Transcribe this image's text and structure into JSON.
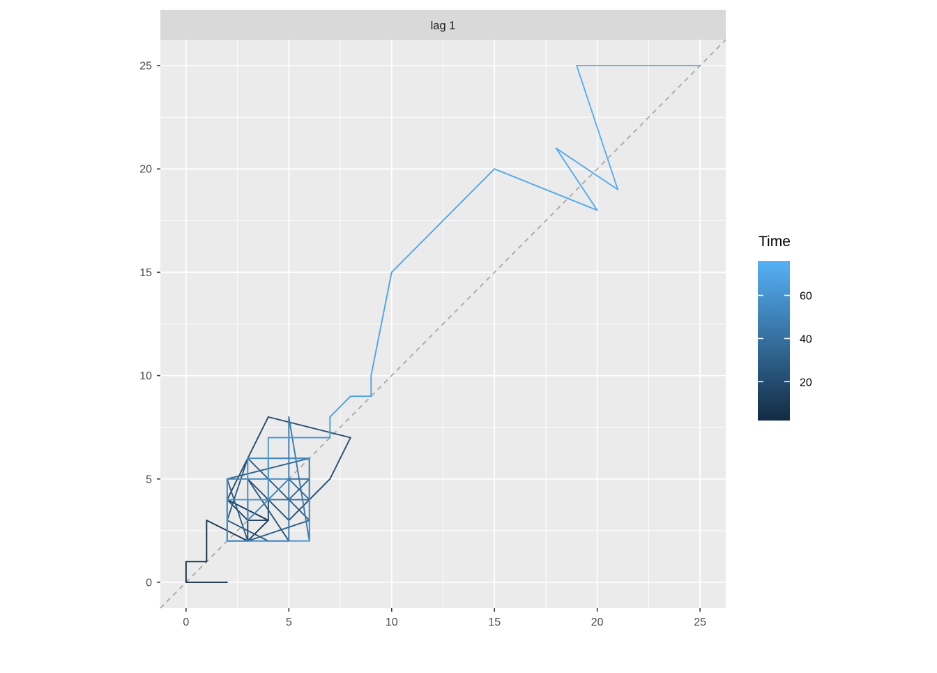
{
  "strip": {
    "label": "lag 1"
  },
  "legend": {
    "title": "Time",
    "tick_labels": [
      "60",
      "40",
      "20"
    ]
  },
  "axes": {
    "x_tick_labels": [
      "0",
      "5",
      "10",
      "15",
      "20",
      "25"
    ],
    "y_tick_labels": [
      "0",
      "5",
      "10",
      "15",
      "20",
      "25"
    ]
  },
  "colors": {
    "panel_background": "#EBEBEB",
    "strip_background": "#D9D9D9",
    "grid": "#FFFFFF",
    "reference_line": "#ABABAB",
    "axis_text": "#4D4D4D",
    "tick_mark": "#333333",
    "gradient_low": "#132B43",
    "gradient_high": "#56B1F7"
  },
  "chart_data": {
    "type": "line",
    "title": "lag 1",
    "facet_label": "lag 1",
    "xlabel": "",
    "ylabel": "",
    "x_domain": [
      -1.25,
      26.25
    ],
    "y_domain": [
      -1.25,
      26.25
    ],
    "major_ticks": [
      0,
      5,
      10,
      15,
      20,
      25
    ],
    "minor_ticks": [
      2.5,
      7.5,
      12.5,
      17.5,
      22.5
    ],
    "grid": true,
    "reference_line": {
      "type": "diagonal-y-equals-x",
      "style": "dashed"
    },
    "color_scale": {
      "title": "Time",
      "low": "#132B43",
      "high": "#56B1F7",
      "domain": [
        2,
        76
      ],
      "legend_ticks": [
        60,
        40,
        20
      ],
      "legend_position": "right"
    },
    "points": [
      {
        "x": 2,
        "y": 0,
        "time": 2.0
      },
      {
        "x": 0,
        "y": 0,
        "time": 3.1
      },
      {
        "x": 0,
        "y": 1,
        "time": 4.3
      },
      {
        "x": 1,
        "y": 1,
        "time": 5.4
      },
      {
        "x": 1,
        "y": 3,
        "time": 6.6
      },
      {
        "x": 3,
        "y": 2,
        "time": 7.7
      },
      {
        "x": 2,
        "y": 2,
        "time": 8.8
      },
      {
        "x": 2,
        "y": 4,
        "time": 10.0
      },
      {
        "x": 4,
        "y": 3,
        "time": 11.1
      },
      {
        "x": 3,
        "y": 2,
        "time": 12.2
      },
      {
        "x": 3,
        "y": 4,
        "time": 13.4
      },
      {
        "x": 4,
        "y": 4,
        "time": 14.5
      },
      {
        "x": 4,
        "y": 3,
        "time": 15.7
      },
      {
        "x": 3,
        "y": 3,
        "time": 16.8
      },
      {
        "x": 2,
        "y": 4,
        "time": 17.9
      },
      {
        "x": 4,
        "y": 8,
        "time": 19.1
      },
      {
        "x": 8,
        "y": 7,
        "time": 20.2
      },
      {
        "x": 7,
        "y": 5,
        "time": 21.4
      },
      {
        "x": 5,
        "y": 3,
        "time": 22.5
      },
      {
        "x": 3,
        "y": 5,
        "time": 23.6
      },
      {
        "x": 5,
        "y": 2,
        "time": 24.8
      },
      {
        "x": 4,
        "y": 2,
        "time": 25.9
      },
      {
        "x": 2,
        "y": 3,
        "time": 27.0
      },
      {
        "x": 3,
        "y": 6,
        "time": 28.2
      },
      {
        "x": 6,
        "y": 3,
        "time": 29.3
      },
      {
        "x": 3,
        "y": 2,
        "time": 30.5
      },
      {
        "x": 2,
        "y": 5,
        "time": 31.6
      },
      {
        "x": 6,
        "y": 6,
        "time": 32.7
      },
      {
        "x": 6,
        "y": 4,
        "time": 33.9
      },
      {
        "x": 5,
        "y": 4,
        "time": 35.0
      },
      {
        "x": 6,
        "y": 5,
        "time": 36.2
      },
      {
        "x": 5,
        "y": 5,
        "time": 37.3
      },
      {
        "x": 6,
        "y": 4,
        "time": 38.4
      },
      {
        "x": 4,
        "y": 4,
        "time": 39.6
      },
      {
        "x": 4,
        "y": 6,
        "time": 40.7
      },
      {
        "x": 5,
        "y": 6,
        "time": 41.8
      },
      {
        "x": 6,
        "y": 6,
        "time": 43.0
      },
      {
        "x": 6,
        "y": 2,
        "time": 44.1
      },
      {
        "x": 5,
        "y": 8,
        "time": 45.3
      },
      {
        "x": 5,
        "y": 2,
        "time": 46.4
      },
      {
        "x": 3,
        "y": 2,
        "time": 47.5
      },
      {
        "x": 2,
        "y": 2,
        "time": 48.7
      },
      {
        "x": 2,
        "y": 5,
        "time": 49.8
      },
      {
        "x": 4,
        "y": 5,
        "time": 51.0
      },
      {
        "x": 5,
        "y": 5,
        "time": 52.1
      },
      {
        "x": 3,
        "y": 3,
        "time": 53.2
      },
      {
        "x": 3,
        "y": 6,
        "time": 54.4
      },
      {
        "x": 6,
        "y": 6,
        "time": 55.5
      },
      {
        "x": 6,
        "y": 2,
        "time": 56.6
      },
      {
        "x": 2,
        "y": 2,
        "time": 57.8
      },
      {
        "x": 2,
        "y": 4,
        "time": 58.9
      },
      {
        "x": 4,
        "y": 4,
        "time": 60.1
      },
      {
        "x": 4,
        "y": 6,
        "time": 61.2
      },
      {
        "x": 4,
        "y": 7,
        "time": 62.3
      },
      {
        "x": 7,
        "y": 7,
        "time": 63.5
      },
      {
        "x": 7,
        "y": 8,
        "time": 64.6
      },
      {
        "x": 8,
        "y": 9,
        "time": 65.8
      },
      {
        "x": 9,
        "y": 9,
        "time": 66.9
      },
      {
        "x": 9,
        "y": 10,
        "time": 68.0
      },
      {
        "x": 10,
        "y": 15,
        "time": 69.2
      },
      {
        "x": 15,
        "y": 20,
        "time": 70.3
      },
      {
        "x": 20,
        "y": 18,
        "time": 71.4
      },
      {
        "x": 18,
        "y": 21,
        "time": 72.6
      },
      {
        "x": 21,
        "y": 19,
        "time": 73.7
      },
      {
        "x": 19,
        "y": 25,
        "time": 74.9
      },
      {
        "x": 25,
        "y": 25,
        "time": 76.0
      }
    ]
  }
}
